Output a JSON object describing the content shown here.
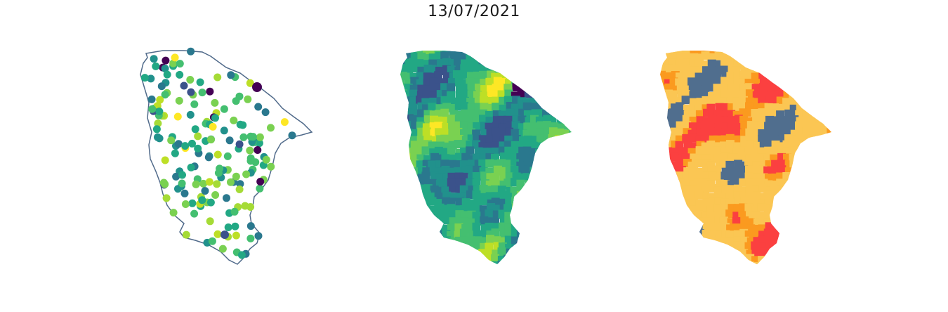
{
  "figure": {
    "title": "13/07/2021"
  },
  "colors": {
    "outline": "#506a8a",
    "viridis": [
      "#440154",
      "#3b528b",
      "#21918c",
      "#2a788e",
      "#22a884",
      "#44bf70",
      "#7ad151",
      "#a5db36",
      "#bddf26",
      "#fde725"
    ],
    "categories": [
      "#506e8e",
      "#fbc653",
      "#fb9a1f",
      "#fb4040"
    ]
  },
  "panels": [
    {
      "id": "stations",
      "kind": "point-map"
    },
    {
      "id": "interpolated",
      "kind": "choropleth-continuous"
    },
    {
      "id": "classified",
      "kind": "choropleth-categorical"
    }
  ]
}
